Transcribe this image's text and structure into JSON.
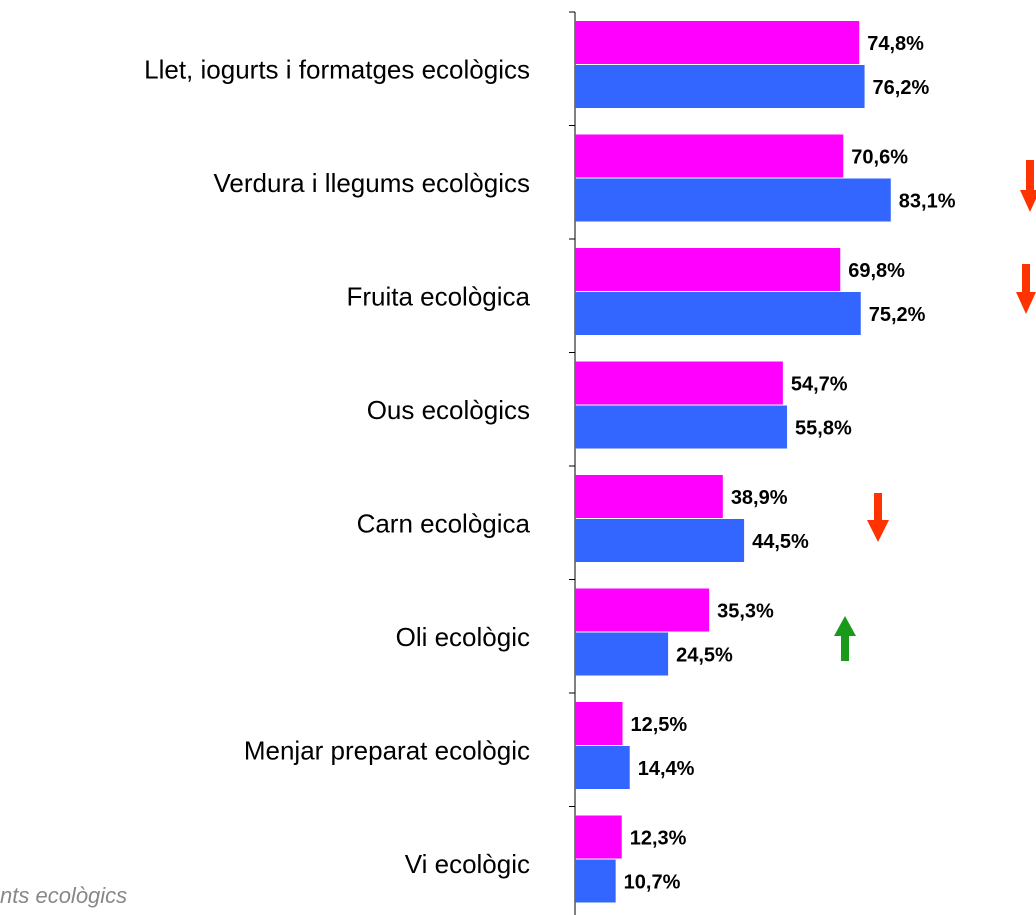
{
  "chart_data": {
    "type": "bar",
    "orientation": "horizontal",
    "categories": [
      "Llet, iogurts i formatges ecològics",
      "Verdura i llegums ecològics",
      "Fruita ecològica",
      "Ous ecològics",
      "Carn ecològica",
      "Oli ecològic",
      "Menjar preparat ecològic",
      "Vi ecològic"
    ],
    "series": [
      {
        "color": "#ff00ff",
        "values": [
          74.8,
          70.6,
          69.8,
          54.7,
          38.9,
          35.3,
          12.5,
          12.3
        ],
        "value_labels": [
          "74,8%",
          "70,6%",
          "69,8%",
          "54,7%",
          "38,9%",
          "35,3%",
          "12,5%",
          "12,3%"
        ]
      },
      {
        "color": "#3366ff",
        "values": [
          76.2,
          83.1,
          75.2,
          55.8,
          44.5,
          24.5,
          14.4,
          10.7
        ],
        "value_labels": [
          "76,2%",
          "83,1%",
          "75,2%",
          "55,8%",
          "44,5%",
          "24,5%",
          "14,4%",
          "10,7%"
        ]
      }
    ],
    "xlim": [
      0,
      100
    ],
    "footnote": "nts ecològics"
  }
}
